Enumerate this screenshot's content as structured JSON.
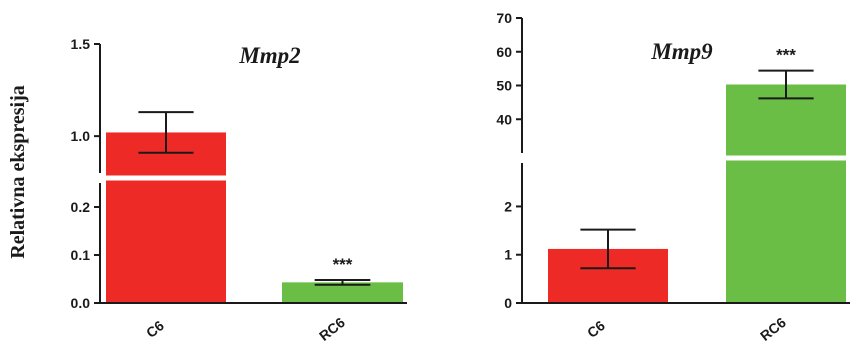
{
  "colors": {
    "C6": "#ee2a26",
    "RC6": "#6abd45",
    "axis": "#1a1a1a"
  },
  "chart_data": [
    {
      "type": "bar",
      "title": "Mmp2",
      "ylabel": "Relativna ekspresija",
      "categories": [
        "C6",
        "RC6"
      ],
      "values": [
        1.02,
        0.043
      ],
      "error": [
        0.11,
        0.005
      ],
      "significance": [
        "",
        "***"
      ],
      "axis_break": true,
      "lower_segment": {
        "ylim": [
          0,
          0.25
        ],
        "ticks": [
          0.0,
          0.1,
          0.2
        ],
        "tick_labels": [
          "0.0",
          "0.1",
          "0.2"
        ]
      },
      "upper_segment": {
        "ylim": [
          0.8,
          1.5
        ],
        "ticks": [
          1.0,
          1.5
        ],
        "tick_labels": [
          "1.0",
          "1.5"
        ]
      }
    },
    {
      "type": "bar",
      "title": "Mmp9",
      "ylabel": "",
      "categories": [
        "C6",
        "RC6"
      ],
      "values": [
        1.12,
        50.3
      ],
      "error": [
        0.4,
        4.1
      ],
      "significance": [
        "",
        "***"
      ],
      "axis_break": true,
      "lower_segment": {
        "ylim": [
          0,
          2.9
        ],
        "ticks": [
          0,
          1,
          2
        ],
        "tick_labels": [
          "0",
          "1",
          "2"
        ]
      },
      "upper_segment": {
        "ylim": [
          30,
          70
        ],
        "ticks": [
          40,
          50,
          60,
          70
        ],
        "tick_labels": [
          "40",
          "50",
          "60",
          "70"
        ]
      }
    }
  ]
}
